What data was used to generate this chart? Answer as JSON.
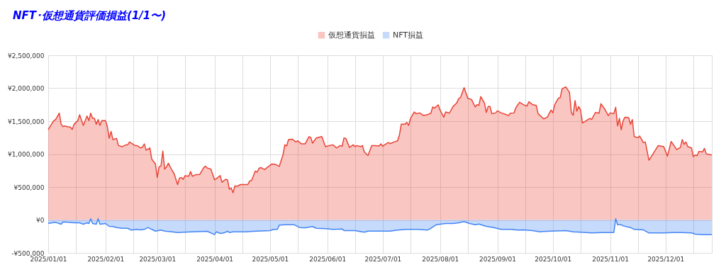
{
  "chart_data": {
    "type": "area",
    "title": "NFT･仮想通貨評価損益(1/1〜)",
    "legend": "top",
    "grid": true,
    "xlim": [
      "2025-01-01",
      "2025-12-26"
    ],
    "xticks": [
      {
        "value": "2025-01-01",
        "label": "2025/01/01"
      },
      {
        "value": "2025-01-16",
        "label": null
      },
      {
        "value": "2025-02-01",
        "label": "2025/02/01"
      },
      {
        "value": "2025-02-16",
        "label": null
      },
      {
        "value": "2025-03-01",
        "label": "2025/03/01"
      },
      {
        "value": "2025-03-16",
        "label": null
      },
      {
        "value": "2025-04-01",
        "label": "2025/04/01"
      },
      {
        "value": "2025-04-16",
        "label": null
      },
      {
        "value": "2025-05-01",
        "label": "2025/05/01"
      },
      {
        "value": "2025-05-16",
        "label": null
      },
      {
        "value": "2025-06-01",
        "label": "2025/06/01"
      },
      {
        "value": "2025-06-16",
        "label": null
      },
      {
        "value": "2025-07-01",
        "label": "2025/07/01"
      },
      {
        "value": "2025-07-16",
        "label": null
      },
      {
        "value": "2025-08-01",
        "label": "2025/08/01"
      },
      {
        "value": "2025-08-16",
        "label": null
      },
      {
        "value": "2025-09-01",
        "label": "2025/09/01"
      },
      {
        "value": "2025-09-16",
        "label": null
      },
      {
        "value": "2025-10-01",
        "label": "2025/10/01"
      },
      {
        "value": "2025-10-16",
        "label": null
      },
      {
        "value": "2025-11-01",
        "label": "2025/11/01"
      },
      {
        "value": "2025-11-16",
        "label": null
      },
      {
        "value": "2025-12-01",
        "label": "2025/12/01"
      },
      {
        "value": "2025-12-16",
        "label": null
      }
    ],
    "ylim": [
      -500000,
      2500000
    ],
    "yticks": [
      {
        "value": -500000,
        "label": "-¥500,000"
      },
      {
        "value": 0,
        "label": "¥0"
      },
      {
        "value": 500000,
        "label": "¥500,000"
      },
      {
        "value": 1000000,
        "label": "¥1,000,000"
      },
      {
        "value": 1500000,
        "label": "¥1,500,000"
      },
      {
        "value": 2000000,
        "label": "¥2,000,000"
      },
      {
        "value": 2500000,
        "label": "¥2,500,000"
      }
    ],
    "series": [
      {
        "name": "仮想通貨損益",
        "color": "#ea4335",
        "x": [
          "2025-01-01",
          "2025-01-02",
          "2025-01-04",
          "2025-01-05",
          "2025-01-07",
          "2025-01-08",
          "2025-01-09",
          "2025-01-10",
          "2025-01-12",
          "2025-01-13",
          "2025-01-14",
          "2025-01-15",
          "2025-01-17",
          "2025-01-18",
          "2025-01-20",
          "2025-01-22",
          "2025-01-23",
          "2025-01-24",
          "2025-01-25",
          "2025-01-26",
          "2025-01-27",
          "2025-01-28",
          "2025-01-29",
          "2025-01-30",
          "2025-02-01",
          "2025-02-02",
          "2025-02-03",
          "2025-02-04",
          "2025-02-05",
          "2025-02-07",
          "2025-02-08",
          "2025-02-10",
          "2025-02-12",
          "2025-02-13",
          "2025-02-14",
          "2025-02-15",
          "2025-02-17",
          "2025-02-18",
          "2025-02-20",
          "2025-02-21",
          "2025-02-22",
          "2025-02-23",
          "2025-02-25",
          "2025-02-26",
          "2025-02-28",
          "2025-03-01",
          "2025-03-02",
          "2025-03-03",
          "2025-03-04",
          "2025-03-05",
          "2025-03-06",
          "2025-03-07",
          "2025-03-09",
          "2025-03-10",
          "2025-03-12",
          "2025-03-13",
          "2025-03-14",
          "2025-03-15",
          "2025-03-16",
          "2025-03-18",
          "2025-03-19",
          "2025-03-20",
          "2025-03-22",
          "2025-03-24",
          "2025-03-26",
          "2025-03-27",
          "2025-03-28",
          "2025-03-30",
          "2025-04-01",
          "2025-04-02",
          "2025-04-04",
          "2025-04-05",
          "2025-04-07",
          "2025-04-08",
          "2025-04-09",
          "2025-04-10",
          "2025-04-11",
          "2025-04-12",
          "2025-04-13",
          "2025-04-15",
          "2025-04-17",
          "2025-04-19",
          "2025-04-20",
          "2025-04-21",
          "2025-04-23",
          "2025-04-24",
          "2025-04-25",
          "2025-04-26",
          "2025-04-28",
          "2025-04-30",
          "2025-05-02",
          "2025-05-04",
          "2025-05-06",
          "2025-05-08",
          "2025-05-09",
          "2025-05-10",
          "2025-05-11",
          "2025-05-13",
          "2025-05-15",
          "2025-05-16",
          "2025-05-18",
          "2025-05-20",
          "2025-05-22",
          "2025-05-23",
          "2025-05-24",
          "2025-05-26",
          "2025-05-29",
          "2025-05-31",
          "2025-06-02",
          "2025-06-04",
          "2025-06-06",
          "2025-06-08",
          "2025-06-09",
          "2025-06-10",
          "2025-06-11",
          "2025-06-13",
          "2025-06-15",
          "2025-06-16",
          "2025-06-17",
          "2025-06-19",
          "2025-06-20",
          "2025-06-21",
          "2025-06-23",
          "2025-06-25",
          "2025-06-27",
          "2025-06-29",
          "2025-06-30",
          "2025-07-01",
          "2025-07-02",
          "2025-07-04",
          "2025-07-05",
          "2025-07-07",
          "2025-07-09",
          "2025-07-10",
          "2025-07-11",
          "2025-07-13",
          "2025-07-14",
          "2025-07-15",
          "2025-07-16",
          "2025-07-18",
          "2025-07-19",
          "2025-07-21",
          "2025-07-23",
          "2025-07-25",
          "2025-07-27",
          "2025-07-28",
          "2025-07-29",
          "2025-07-31",
          "2025-08-01",
          "2025-08-03",
          "2025-08-04",
          "2025-08-06",
          "2025-08-08",
          "2025-08-10",
          "2025-08-11",
          "2025-08-12",
          "2025-08-14",
          "2025-08-16",
          "2025-08-18",
          "2025-08-20",
          "2025-08-21",
          "2025-08-22",
          "2025-08-23",
          "2025-08-25",
          "2025-08-26",
          "2025-08-27",
          "2025-08-28",
          "2025-08-29",
          "2025-08-31",
          "2025-09-01",
          "2025-09-03",
          "2025-09-05",
          "2025-09-07",
          "2025-09-08",
          "2025-09-10",
          "2025-09-11",
          "2025-09-13",
          "2025-09-15",
          "2025-09-17",
          "2025-09-18",
          "2025-09-20",
          "2025-09-22",
          "2025-09-23",
          "2025-09-26",
          "2025-09-28",
          "2025-09-30",
          "2025-10-01",
          "2025-10-02",
          "2025-10-04",
          "2025-10-05",
          "2025-10-06",
          "2025-10-08",
          "2025-10-10",
          "2025-10-11",
          "2025-10-12",
          "2025-10-13",
          "2025-10-14",
          "2025-10-15",
          "2025-10-16",
          "2025-10-17",
          "2025-10-19",
          "2025-10-21",
          "2025-10-22",
          "2025-10-24",
          "2025-10-26",
          "2025-10-27",
          "2025-10-29",
          "2025-10-31",
          "2025-11-01",
          "2025-11-03",
          "2025-11-04",
          "2025-11-05",
          "2025-11-06",
          "2025-11-07",
          "2025-11-08",
          "2025-11-09",
          "2025-11-11",
          "2025-11-12",
          "2025-11-13",
          "2025-11-14",
          "2025-11-16",
          "2025-11-17",
          "2025-11-19",
          "2025-11-20",
          "2025-11-22",
          "2025-11-23",
          "2025-11-25",
          "2025-11-27",
          "2025-11-30",
          "2025-12-02",
          "2025-12-04",
          "2025-12-07",
          "2025-12-09",
          "2025-12-10",
          "2025-12-11",
          "2025-12-12",
          "2025-12-13",
          "2025-12-15",
          "2025-12-16",
          "2025-12-17",
          "2025-12-18",
          "2025-12-19",
          "2025-12-21",
          "2025-12-22",
          "2025-12-23",
          "2025-12-26"
        ],
        "values": [
          1370000,
          1417000,
          1507000,
          1525000,
          1621000,
          1453000,
          1417000,
          1428000,
          1410000,
          1410000,
          1374000,
          1453000,
          1507000,
          1596000,
          1435000,
          1578000,
          1507000,
          1621000,
          1542000,
          1542000,
          1453000,
          1525000,
          1435000,
          1507000,
          1507000,
          1417000,
          1238000,
          1345000,
          1220000,
          1238000,
          1130000,
          1112000,
          1141000,
          1141000,
          1184000,
          1166000,
          1130000,
          1130000,
          1094000,
          1105000,
          1155000,
          1058000,
          1094000,
          925000,
          850000,
          646000,
          807000,
          818000,
          1047000,
          771000,
          807000,
          861000,
          753000,
          710000,
          538000,
          635000,
          646000,
          617000,
          671000,
          664000,
          735000,
          664000,
          689000,
          692000,
          789000,
          818000,
          789000,
          771000,
          610000,
          628000,
          674000,
          574000,
          617000,
          610000,
          466000,
          484000,
          413000,
          520000,
          509000,
          538000,
          538000,
          538000,
          592000,
          599000,
          743000,
          725000,
          782000,
          796000,
          764000,
          807000,
          850000,
          843000,
          814000,
          986000,
          1141000,
          1123000,
          1220000,
          1227000,
          1184000,
          1202000,
          1155000,
          1155000,
          1263000,
          1256000,
          1166000,
          1245000,
          1266000,
          1112000,
          1130000,
          1141000,
          1094000,
          1130000,
          1119000,
          1245000,
          1238000,
          1101000,
          1141000,
          1112000,
          1130000,
          1112000,
          1130000,
          1033000,
          979000,
          1130000,
          1130000,
          1123000,
          1155000,
          1119000,
          1141000,
          1177000,
          1159000,
          1184000,
          1202000,
          1291000,
          1453000,
          1453000,
          1481000,
          1435000,
          1542000,
          1639000,
          1614000,
          1625000,
          1585000,
          1596000,
          1621000,
          1715000,
          1697000,
          1747000,
          1668000,
          1560000,
          1639000,
          1621000,
          1722000,
          1776000,
          1840000,
          1858000,
          2009000,
          1847000,
          1829000,
          1715000,
          1751000,
          1740000,
          1873000,
          1776000,
          1632000,
          1722000,
          1722000,
          1614000,
          1625000,
          1657000,
          1625000,
          1607000,
          1585000,
          1621000,
          1625000,
          1704000,
          1786000,
          1751000,
          1729000,
          1794000,
          1751000,
          1740000,
          1614000,
          1535000,
          1560000,
          1668000,
          1625000,
          1751000,
          1847000,
          1858000,
          1991000,
          2020000,
          1937000,
          1632000,
          1589000,
          1812000,
          1650000,
          1722000,
          1668000,
          1471000,
          1507000,
          1542000,
          1525000,
          1632000,
          1621000,
          1765000,
          1686000,
          1585000,
          1625000,
          1614000,
          1711000,
          1428000,
          1542000,
          1370000,
          1507000,
          1560000,
          1553000,
          1453000,
          1525000,
          1266000,
          1249000,
          1274000,
          1173000,
          1184000,
          908000,
          951000,
          1040000,
          1130000,
          1112000,
          969000,
          1191000,
          1069000,
          1101000,
          1220000,
          1148000,
          1184000,
          1112000,
          1094000,
          961000,
          986000,
          976000,
          1040000,
          1033000,
          1087000,
          1004000,
          986000
        ]
      },
      {
        "name": "NFT損益",
        "color": "#4285f4",
        "x": [
          "2025-01-01",
          "2025-01-03",
          "2025-01-05",
          "2025-01-08",
          "2025-01-09",
          "2025-01-12",
          "2025-01-15",
          "2025-01-18",
          "2025-01-20",
          "2025-01-22",
          "2025-01-23",
          "2025-01-24",
          "2025-01-25",
          "2025-01-27",
          "2025-01-28",
          "2025-01-29",
          "2025-02-01",
          "2025-02-03",
          "2025-02-05",
          "2025-02-07",
          "2025-02-10",
          "2025-02-13",
          "2025-02-15",
          "2025-02-18",
          "2025-02-20",
          "2025-02-22",
          "2025-02-24",
          "2025-02-26",
          "2025-02-28",
          "2025-03-03",
          "2025-03-05",
          "2025-03-09",
          "2025-03-12",
          "2025-03-20",
          "2025-03-28",
          "2025-04-01",
          "2025-04-02",
          "2025-04-04",
          "2025-04-06",
          "2025-04-08",
          "2025-04-09",
          "2025-04-11",
          "2025-04-18",
          "2025-04-22",
          "2025-05-01",
          "2025-05-03",
          "2025-05-05",
          "2025-05-06",
          "2025-05-09",
          "2025-05-14",
          "2025-05-17",
          "2025-05-20",
          "2025-05-24",
          "2025-05-26",
          "2025-05-31",
          "2025-06-04",
          "2025-06-09",
          "2025-06-10",
          "2025-06-16",
          "2025-06-21",
          "2025-06-23",
          "2025-07-01",
          "2025-07-05",
          "2025-07-09",
          "2025-07-14",
          "2025-07-20",
          "2025-07-25",
          "2025-07-27",
          "2025-07-30",
          "2025-08-01",
          "2025-08-04",
          "2025-08-08",
          "2025-08-11",
          "2025-08-14",
          "2025-08-17",
          "2025-08-20",
          "2025-08-22",
          "2025-08-26",
          "2025-08-30",
          "2025-09-03",
          "2025-09-08",
          "2025-09-12",
          "2025-09-15",
          "2025-09-20",
          "2025-09-24",
          "2025-09-30",
          "2025-10-08",
          "2025-10-12",
          "2025-10-16",
          "2025-10-22",
          "2025-10-28",
          "2025-11-03",
          "2025-11-04",
          "2025-11-05",
          "2025-11-07",
          "2025-11-08",
          "2025-11-12",
          "2025-11-14",
          "2025-11-19",
          "2025-11-22",
          "2025-11-30",
          "2025-12-05",
          "2025-12-10",
          "2025-12-15",
          "2025-12-17",
          "2025-12-21",
          "2025-12-26"
        ],
        "values": [
          -54000,
          -43000,
          -36000,
          -65000,
          -29000,
          -36000,
          -43000,
          -43000,
          -65000,
          -43000,
          -54000,
          18000,
          -54000,
          -65000,
          18000,
          -65000,
          -54000,
          -97000,
          -100000,
          -115000,
          -126000,
          -126000,
          -154000,
          -143000,
          -151000,
          -143000,
          -115000,
          -143000,
          -169000,
          -154000,
          -169000,
          -179000,
          -190000,
          -179000,
          -172000,
          -222000,
          -179000,
          -204000,
          -197000,
          -172000,
          -190000,
          -179000,
          -179000,
          -172000,
          -161000,
          -143000,
          -143000,
          -79000,
          -72000,
          -72000,
          -115000,
          -118000,
          -100000,
          -126000,
          -133000,
          -143000,
          -136000,
          -161000,
          -161000,
          -186000,
          -169000,
          -169000,
          -169000,
          -154000,
          -143000,
          -143000,
          -154000,
          -126000,
          -72000,
          -65000,
          -54000,
          -54000,
          -43000,
          -25000,
          -54000,
          -72000,
          -61000,
          -97000,
          -115000,
          -143000,
          -143000,
          -154000,
          -151000,
          -161000,
          -179000,
          -169000,
          -161000,
          -179000,
          -186000,
          -197000,
          -190000,
          -190000,
          18000,
          -72000,
          -72000,
          -90000,
          -115000,
          -143000,
          -151000,
          -197000,
          -197000,
          -190000,
          -190000,
          -197000,
          -215000,
          -222000,
          -222000
        ]
      }
    ]
  }
}
